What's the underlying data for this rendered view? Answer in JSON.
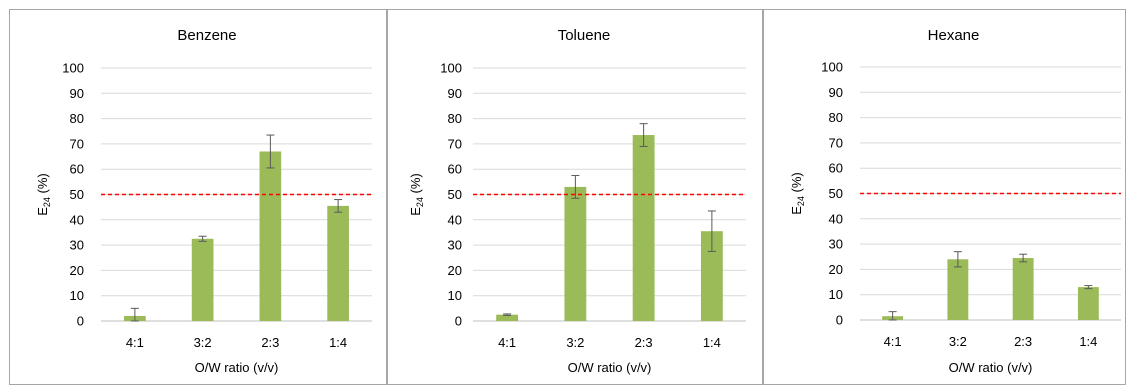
{
  "chart_data": [
    {
      "type": "bar",
      "title": "Benzene",
      "categories": [
        "4:1",
        "3:2",
        "2:3",
        "1:4"
      ],
      "values": [
        2,
        32.5,
        67,
        45.5
      ],
      "errors": [
        3,
        1,
        6.5,
        2.5
      ],
      "xlabel": "O/W ratio (v/v)",
      "ylabel": "E24 (%)",
      "ylim": [
        0,
        100
      ],
      "yticks": [
        0,
        10,
        20,
        30,
        40,
        50,
        60,
        70,
        80,
        90,
        100
      ],
      "reference_line": 50,
      "bar_color": "#9bbb59",
      "reference_color": "#ff0000"
    },
    {
      "type": "bar",
      "title": "Toluene",
      "categories": [
        "4:1",
        "3:2",
        "2:3",
        "1:4"
      ],
      "values": [
        2.5,
        53,
        73.5,
        35.5
      ],
      "errors": [
        0.3,
        4.5,
        4.5,
        8
      ],
      "xlabel": "O/W ratio (v/v)",
      "ylabel": "E24 (%)",
      "ylim": [
        0,
        100
      ],
      "yticks": [
        0,
        10,
        20,
        30,
        40,
        50,
        60,
        70,
        80,
        90,
        100
      ],
      "reference_line": 50,
      "bar_color": "#9bbb59",
      "reference_color": "#ff0000"
    },
    {
      "type": "bar",
      "title": "Hexane",
      "categories": [
        "4:1",
        "3:2",
        "2:3",
        "1:4"
      ],
      "values": [
        1.5,
        24,
        24.5,
        13
      ],
      "errors": [
        1.8,
        3,
        1.5,
        0.6
      ],
      "xlabel": "O/W ratio (v/v)",
      "ylabel": "E24 (%)",
      "ylim": [
        0,
        100
      ],
      "yticks": [
        0,
        10,
        20,
        30,
        40,
        50,
        60,
        70,
        80,
        90,
        100
      ],
      "reference_line": 50,
      "bar_color": "#9bbb59",
      "reference_color": "#ff0000"
    }
  ]
}
